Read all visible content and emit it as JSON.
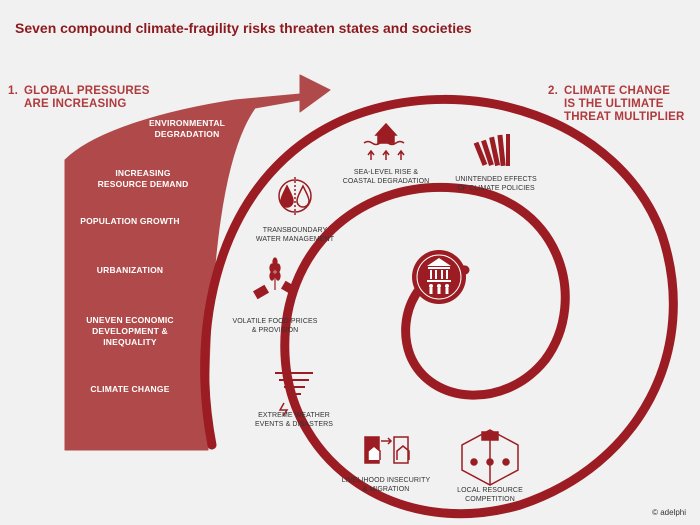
{
  "title": "Seven compound climate-fragility risks threaten states and societies",
  "section_left": {
    "number": "1.",
    "line1": "GLOBAL PRESSURES",
    "line2": "ARE INCREASING"
  },
  "section_right": {
    "number": "2.",
    "line1": "CLIMATE CHANGE",
    "line2": "IS THE ULTIMATE",
    "line3": "THREAT MULTIPLIER"
  },
  "pressures": [
    {
      "line1": "ENVIRONMENTAL",
      "line2": "DEGRADATION"
    },
    {
      "line1": "INCREASING",
      "line2": "RESOURCE DEMAND"
    },
    {
      "line1": "POPULATION GROWTH"
    },
    {
      "line1": "URBANIZATION"
    },
    {
      "line1": "UNEVEN ECONOMIC",
      "line2": "DEVELOPMENT &",
      "line3": "INEQUALITY"
    },
    {
      "line1": "CLIMATE CHANGE"
    }
  ],
  "risks": [
    {
      "line1": "SEA-LEVEL RISE &",
      "line2": "COASTAL DEGRADATION",
      "icon": "sea-level-rise-icon"
    },
    {
      "line1": "UNINTENDED EFFECTS",
      "line2": "OF CLIMATE POLICIES",
      "icon": "books-icon"
    },
    {
      "line1": "TRANSBOUNDARY",
      "line2": "WATER MANAGEMENT",
      "icon": "water-drops-icon"
    },
    {
      "line1": "VOLATILE FOOD PRICES",
      "line2": "& PROVISION",
      "icon": "wheat-price-tags-icon"
    },
    {
      "line1": "EXTREME WEATHER",
      "line2": "EVENTS & DISASTERS",
      "icon": "tornado-icon"
    },
    {
      "line1": "LIVELIHOOD INSECURITY",
      "line2": "& MIGRATION",
      "icon": "houses-migration-icon"
    },
    {
      "line1": "LOCAL RESOURCE",
      "line2": "COMPETITION",
      "icon": "resource-competition-icon"
    }
  ],
  "center_icon": "state-society-icon",
  "credit": "© adelphi",
  "colors": {
    "title": "#8c1a1e",
    "arrow": "#b04a4a",
    "spiral": "#9b1c22",
    "section": "#b03a3c",
    "background": "#f1f1f1"
  }
}
